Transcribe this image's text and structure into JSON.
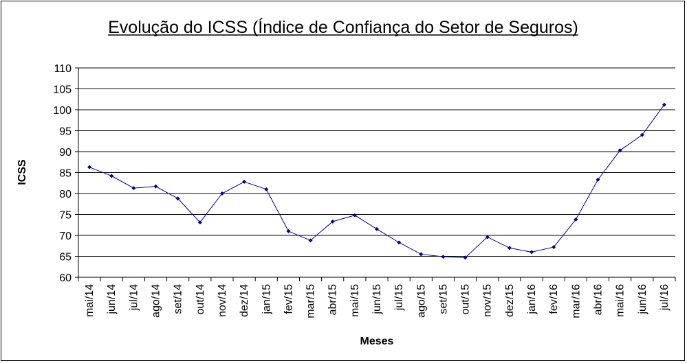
{
  "chart_data": {
    "type": "line",
    "title": "Evolução do ICSS (Índice de Confiança do Setor de Seguros)",
    "xlabel": "Meses",
    "ylabel": "ICSS",
    "ylim": [
      60,
      110
    ],
    "yticks": [
      "60",
      "65",
      "70",
      "75",
      "80",
      "85",
      "90",
      "95",
      "100",
      "105",
      "110"
    ],
    "grid": true,
    "legend": "none",
    "categories": [
      "mai/14",
      "jun/14",
      "jul/14",
      "ago/14",
      "set/14",
      "out/14",
      "nov/14",
      "dez/14",
      "jan/15",
      "fev/15",
      "mar/15",
      "abr/15",
      "mai/15",
      "jun/15",
      "jul/15",
      "ago/15",
      "set/15",
      "out/15",
      "nov/15",
      "dez/15",
      "jan/16",
      "fev/16",
      "mar/16",
      "abr/16",
      "mai/16",
      "jun/16",
      "jul/16"
    ],
    "series": [
      {
        "values": [
          86.3,
          84.2,
          81.3,
          81.7,
          78.8,
          73.1,
          80.0,
          82.8,
          81.0,
          71.0,
          68.8,
          73.3,
          74.8,
          71.5,
          68.3,
          65.5,
          64.9,
          64.7,
          69.6,
          67.0,
          66.0,
          67.2,
          73.8,
          83.3,
          90.3,
          94.0,
          101.2
        ],
        "color": "#000080"
      }
    ]
  }
}
